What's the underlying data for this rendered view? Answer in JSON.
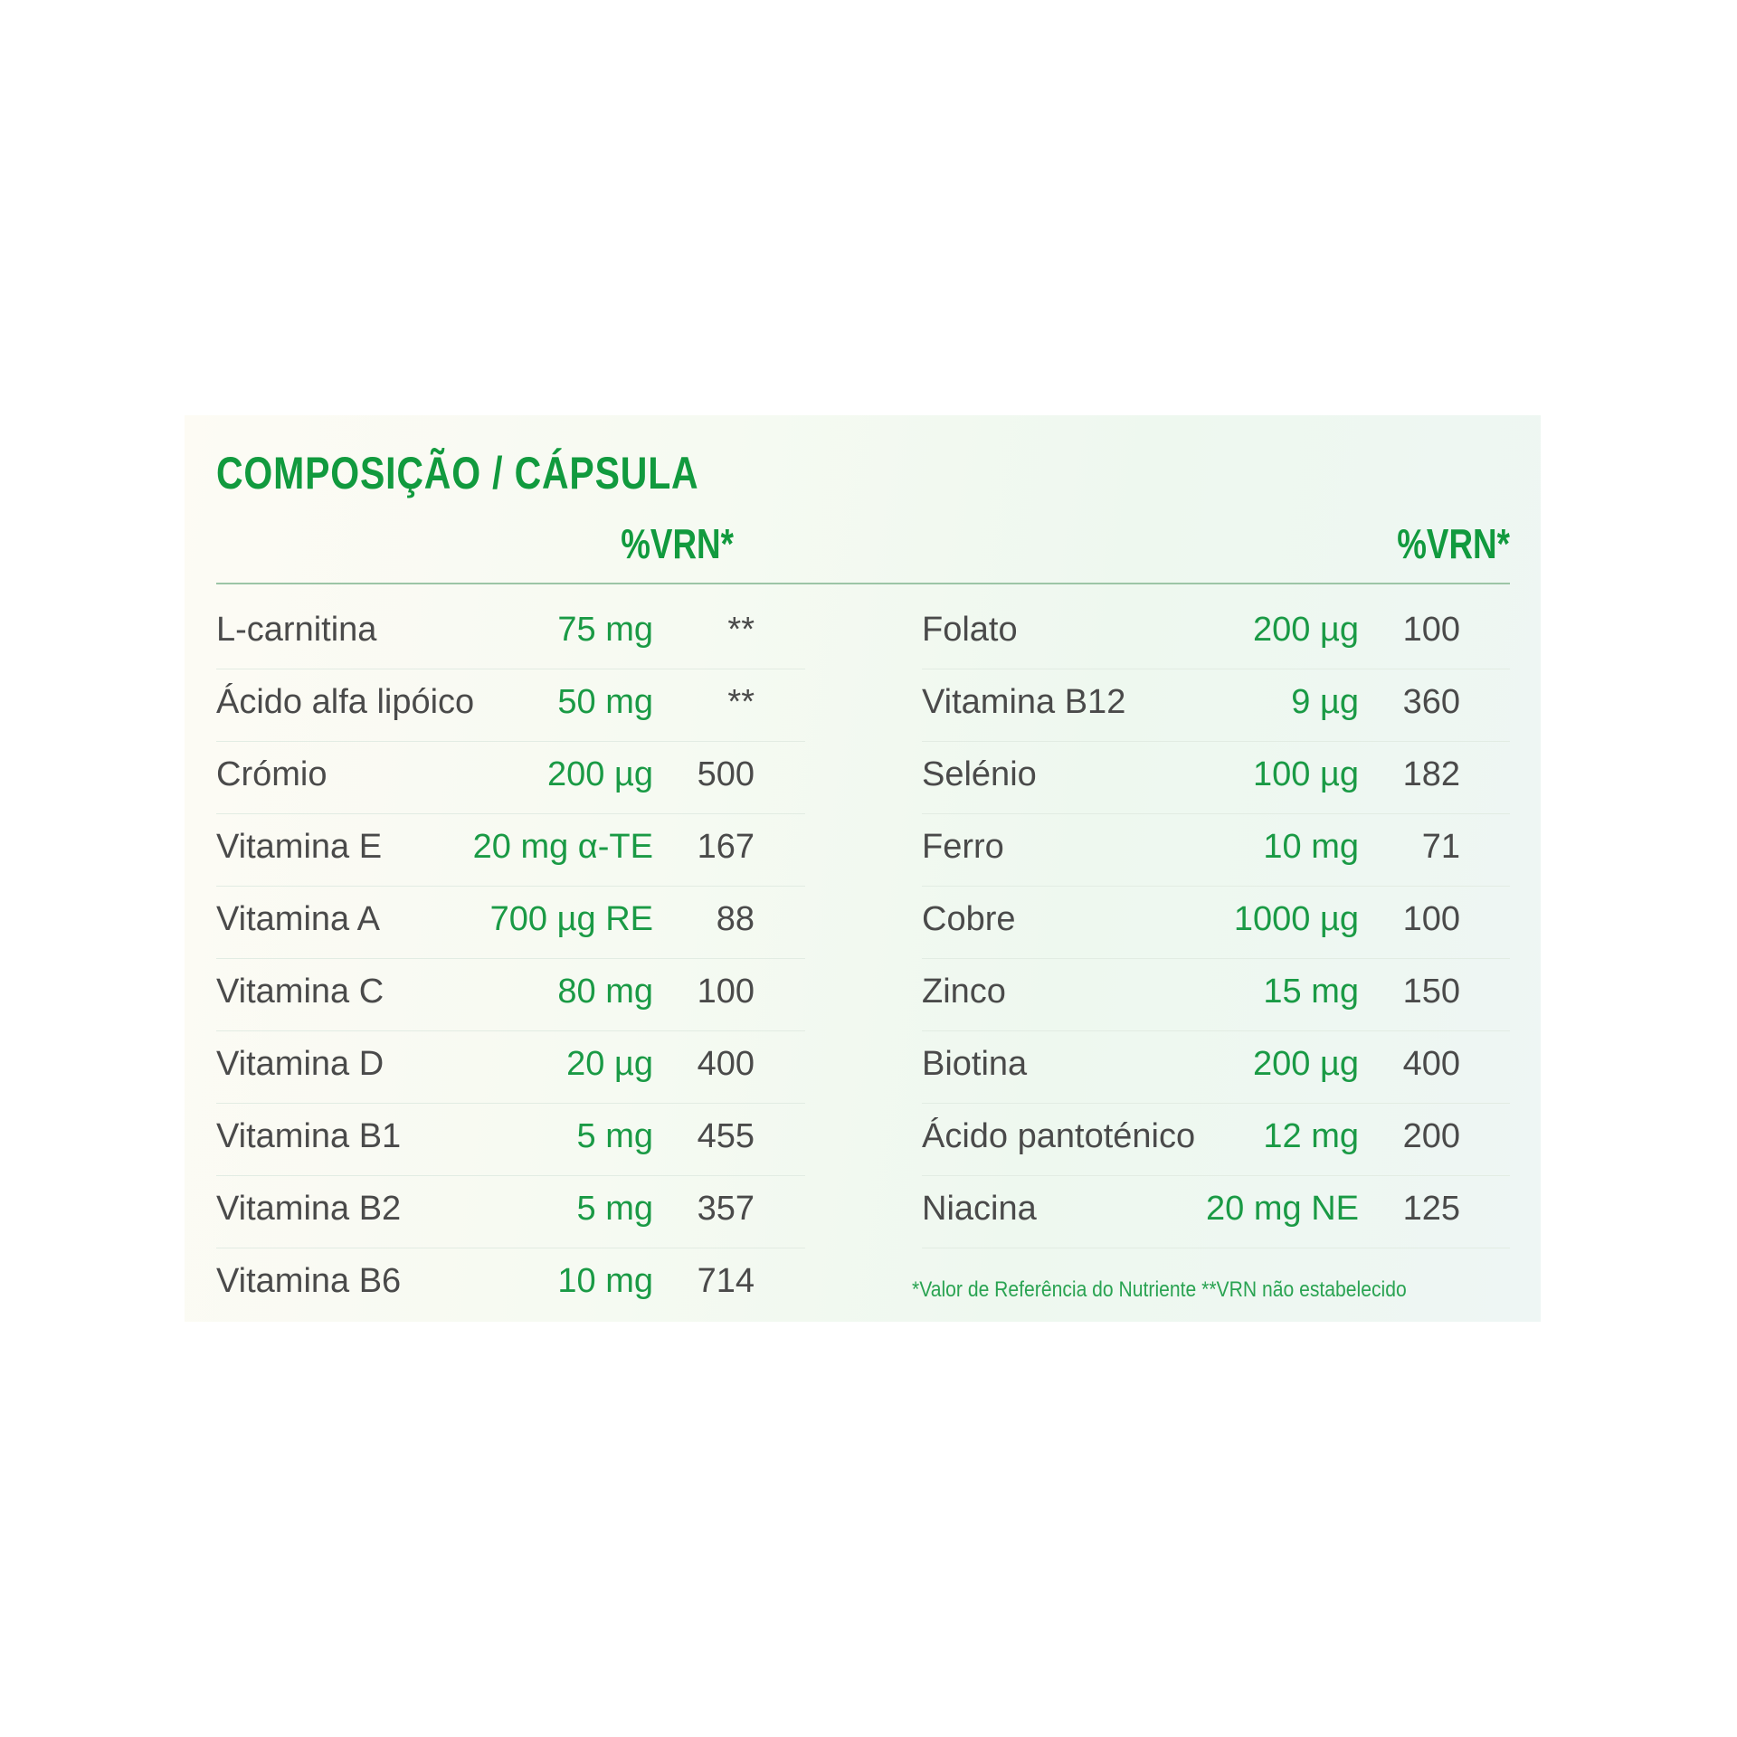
{
  "title": "COMPOSIÇÃO / CÁPSULA",
  "vrn_header_left": "%VRN*",
  "vrn_header_right": "%VRN*",
  "colors": {
    "green": "#119a3e",
    "text": "#4a4a4a"
  },
  "left_rows": [
    {
      "name": "L-carnitina",
      "amount": "75 mg",
      "vrn": "**"
    },
    {
      "name": "Ácido alfa lipóico",
      "amount": "50 mg",
      "vrn": "**"
    },
    {
      "name": "Crómio",
      "amount": "200 µg",
      "vrn": "500"
    },
    {
      "name": "Vitamina E",
      "amount": "20 mg α-TE",
      "vrn": "167"
    },
    {
      "name": "Vitamina A",
      "amount": "700 µg RE",
      "vrn": "88"
    },
    {
      "name": "Vitamina C",
      "amount": "80 mg",
      "vrn": "100"
    },
    {
      "name": "Vitamina D",
      "amount": "20 µg",
      "vrn": "400"
    },
    {
      "name": "Vitamina B1",
      "amount": "5 mg",
      "vrn": "455"
    },
    {
      "name": "Vitamina B2",
      "amount": "5 mg",
      "vrn": "357"
    },
    {
      "name": "Vitamina B6",
      "amount": "10 mg",
      "vrn": "714"
    }
  ],
  "right_rows": [
    {
      "name": "Folato",
      "amount": "200 µg",
      "vrn": "100"
    },
    {
      "name": "Vitamina B12",
      "amount": "9 µg",
      "vrn": "360"
    },
    {
      "name": "Selénio",
      "amount": "100 µg",
      "vrn": "182"
    },
    {
      "name": "Ferro",
      "amount": "10 mg",
      "vrn": "71"
    },
    {
      "name": "Cobre",
      "amount": "1000 µg",
      "vrn": "100"
    },
    {
      "name": "Zinco",
      "amount": "15 mg",
      "vrn": "150"
    },
    {
      "name": "Biotina",
      "amount": "200 µg",
      "vrn": "400"
    },
    {
      "name": "Ácido pantoténico",
      "amount": "12 mg",
      "vrn": "200"
    },
    {
      "name": "Niacina",
      "amount": "20 mg NE",
      "vrn": "125"
    }
  ],
  "footnote": "*Valor de Referência do Nutriente **VRN não estabelecido"
}
